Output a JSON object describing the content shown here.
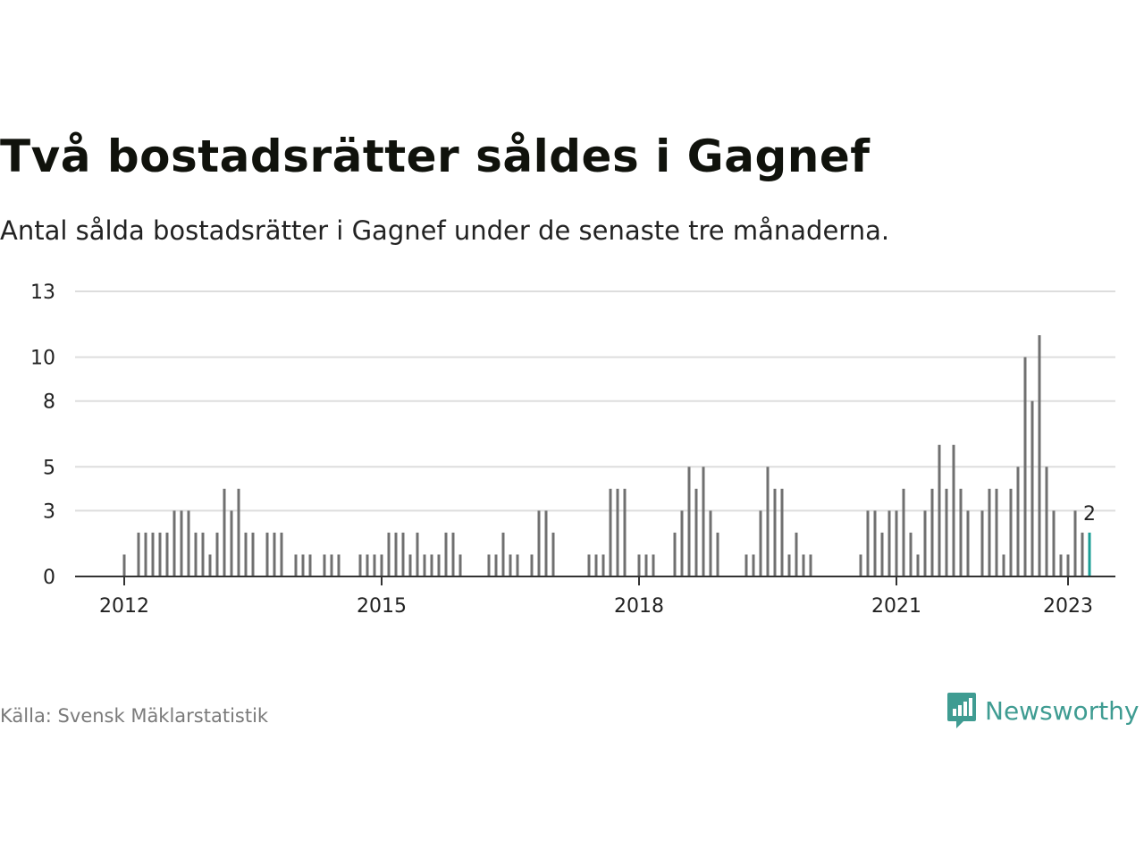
{
  "header": {
    "title": "Två bostadsrätter såldes i Gagnef",
    "subtitle": "Antal sålda bostadsrätter i Gagnef under de senaste tre månaderna."
  },
  "footer": {
    "source": "Källa: Svensk Mäklarstatistik",
    "brand": "Newsworthy"
  },
  "colors": {
    "bar": "#707070",
    "highlight": "#1a9e96",
    "grid": "#dddddd",
    "brand": "#3f9c92"
  },
  "chart_data": {
    "type": "bar",
    "title": "",
    "xlabel": "",
    "ylabel": "",
    "ylim": [
      0,
      13
    ],
    "yticks": [
      0,
      3,
      5,
      8,
      10,
      13
    ],
    "xticks": [
      "2012",
      "2015",
      "2018",
      "2021",
      "2023"
    ],
    "grid": true,
    "x_start": "2012-01",
    "x_end": "2023-01",
    "last_label": "2",
    "values": [
      1,
      0,
      2,
      2,
      2,
      2,
      2,
      3,
      3,
      3,
      2,
      2,
      1,
      2,
      4,
      3,
      4,
      2,
      2,
      0,
      2,
      2,
      2,
      0,
      1,
      1,
      1,
      0,
      1,
      1,
      1,
      0,
      0,
      1,
      1,
      1,
      1,
      2,
      2,
      2,
      1,
      2,
      1,
      1,
      1,
      2,
      2,
      1,
      0,
      0,
      0,
      1,
      1,
      2,
      1,
      1,
      0,
      1,
      3,
      3,
      2,
      0,
      0,
      0,
      0,
      1,
      1,
      1,
      4,
      4,
      4,
      0,
      1,
      1,
      1,
      0,
      0,
      2,
      3,
      5,
      4,
      5,
      3,
      2,
      0,
      0,
      0,
      1,
      1,
      3,
      5,
      4,
      4,
      1,
      2,
      1,
      1,
      0,
      0,
      0,
      0,
      0,
      0,
      1,
      3,
      3,
      2,
      3,
      3,
      4,
      2,
      1,
      3,
      4,
      6,
      4,
      6,
      4,
      3,
      0,
      3,
      4,
      4,
      1,
      4,
      5,
      10,
      8,
      11,
      5,
      3,
      1,
      1,
      3,
      2,
      2
    ]
  }
}
